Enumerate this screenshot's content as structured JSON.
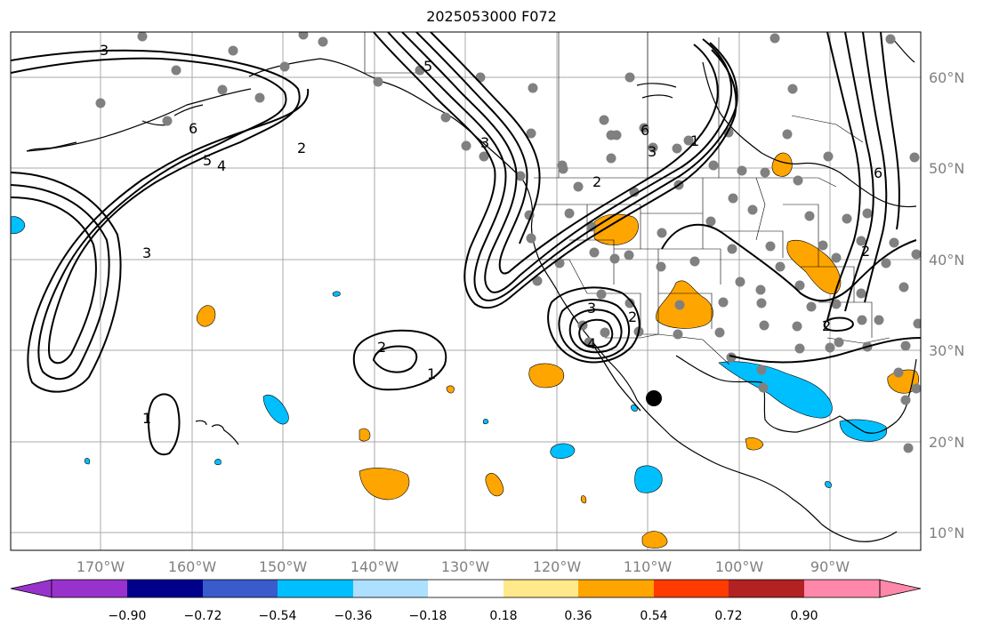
{
  "title": "2025053000 F072",
  "lon_ticks": [
    "170°W",
    "160°W",
    "150°W",
    "140°W",
    "130°W",
    "120°W",
    "110°W",
    "100°W",
    "90°W"
  ],
  "lat_ticks": [
    "60°N",
    "50°N",
    "40°N",
    "30°N",
    "20°N",
    "10°N"
  ],
  "colorbar": {
    "labels": [
      "−0.90",
      "−0.72",
      "−0.54",
      "−0.36",
      "−0.18",
      "0.18",
      "0.36",
      "0.54",
      "0.72",
      "0.90"
    ],
    "colors": [
      "#9932CC",
      "#00008B",
      "#3A5BCC",
      "#00BFFF",
      "#ADDFFF",
      "#FFFFFF",
      "#FFE98A",
      "#FFA500",
      "#FF3B00",
      "#B22222",
      "#FF88AA"
    ],
    "extend": "both"
  },
  "contour_labels": [
    "3",
    "5",
    "6",
    "4",
    "2",
    "3",
    "5",
    "3",
    "6",
    "3",
    "1",
    "2",
    "2",
    "3",
    "4",
    "1",
    "2",
    "1",
    "6",
    "2",
    "2"
  ],
  "colors": {
    "positive": "#FFA500",
    "negative": "#00BFFF",
    "station": "#808080",
    "grid": "#A9A9A9"
  }
}
